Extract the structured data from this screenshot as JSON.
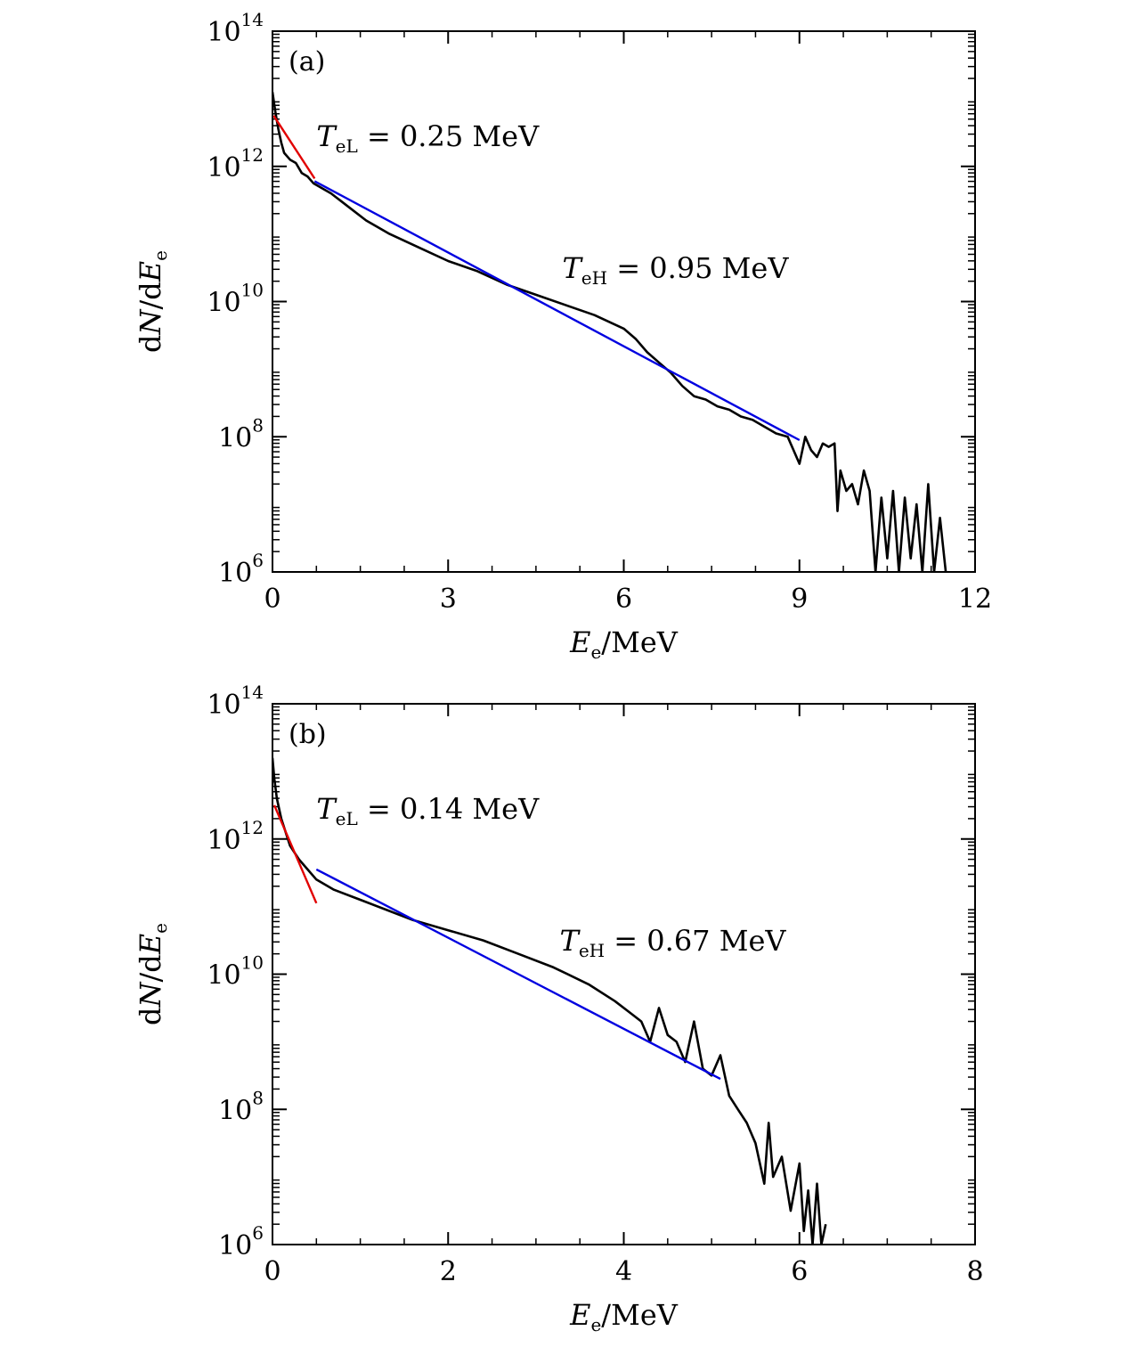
{
  "chart_data": [
    {
      "type": "line",
      "panel_label": "(a)",
      "xlabel": "E",
      "xlabel_sub": "e",
      "xlabel_unit": "/MeV",
      "ylabel": "dN/dE",
      "ylabel_sub": "e",
      "y_scale": "log",
      "xlim": [
        0,
        12
      ],
      "ylim_exp": [
        6,
        14
      ],
      "x_ticks": [
        0,
        3,
        6,
        9,
        12
      ],
      "y_tick_exps": [
        6,
        8,
        10,
        12,
        14
      ],
      "y_tick_base": "10",
      "y_tick_labels": [
        "6",
        "8",
        "10",
        "12",
        "14"
      ],
      "annotations": [
        {
          "symbol": "T",
          "sub": "eL",
          "text": " = 0.25 MeV",
          "at_x": 0.75,
          "at_log": 12.3
        },
        {
          "symbol": "T",
          "sub": "eH",
          "text": " = 0.95 MeV",
          "at_x": 4.95,
          "at_log": 10.35
        }
      ],
      "series": [
        {
          "name": "spectrum",
          "color": "#000000",
          "x": [
            0,
            0.05,
            0.1,
            0.15,
            0.2,
            0.3,
            0.4,
            0.5,
            0.6,
            0.7,
            1.0,
            1.3,
            1.6,
            2.0,
            2.5,
            3.0,
            3.5,
            4.0,
            4.5,
            5.0,
            5.5,
            6.0,
            6.2,
            6.4,
            6.6,
            6.8,
            7.0,
            7.2,
            7.4,
            7.6,
            7.8,
            8.0,
            8.2,
            8.4,
            8.6,
            8.8,
            9.0,
            9.1,
            9.2,
            9.3,
            9.4,
            9.5,
            9.6,
            9.65,
            9.7,
            9.8,
            9.9,
            10.0,
            10.1,
            10.2,
            10.3,
            10.4,
            10.5,
            10.6,
            10.7,
            10.8,
            10.9,
            11.0,
            11.1,
            11.2,
            11.3,
            11.4,
            11.5
          ],
          "log_y": [
            13.1,
            12.8,
            12.55,
            12.35,
            12.2,
            12.1,
            12.05,
            11.9,
            11.85,
            11.75,
            11.6,
            11.4,
            11.2,
            11.0,
            10.8,
            10.6,
            10.45,
            10.25,
            10.1,
            9.95,
            9.8,
            9.6,
            9.45,
            9.25,
            9.1,
            8.95,
            8.75,
            8.6,
            8.55,
            8.45,
            8.4,
            8.3,
            8.25,
            8.15,
            8.05,
            8.0,
            7.6,
            8.0,
            7.8,
            7.7,
            7.9,
            7.85,
            7.9,
            6.9,
            7.5,
            7.2,
            7.3,
            7.0,
            7.5,
            7.2,
            6.0,
            7.1,
            6.2,
            7.2,
            6.0,
            7.1,
            6.2,
            7.0,
            6.0,
            7.3,
            6.0,
            6.8,
            6.0
          ]
        },
        {
          "name": "fit T_eL",
          "color": "#e10000",
          "x": [
            0.02,
            0.72
          ],
          "log_y": [
            12.75,
            11.82
          ]
        },
        {
          "name": "fit T_eH",
          "color": "#0000e0",
          "x": [
            0.72,
            9.0
          ],
          "log_y": [
            11.78,
            7.95
          ]
        }
      ]
    },
    {
      "type": "line",
      "panel_label": "(b)",
      "xlabel": "E",
      "xlabel_sub": "e",
      "xlabel_unit": "/MeV",
      "ylabel": "dN/dE",
      "ylabel_sub": "e",
      "y_scale": "log",
      "xlim": [
        0,
        8
      ],
      "ylim_exp": [
        6,
        14
      ],
      "x_ticks": [
        0,
        2,
        4,
        6,
        8
      ],
      "y_tick_exps": [
        6,
        8,
        10,
        12,
        14
      ],
      "y_tick_base": "10",
      "y_tick_labels": [
        "6",
        "8",
        "10",
        "12",
        "14"
      ],
      "annotations": [
        {
          "symbol": "T",
          "sub": "eL",
          "text": " = 0.14 MeV",
          "at_x": 0.5,
          "at_log": 12.3
        },
        {
          "symbol": "T",
          "sub": "eH",
          "text": " = 0.67 MeV",
          "at_x": 3.27,
          "at_log": 10.35
        }
      ],
      "series": [
        {
          "name": "spectrum",
          "color": "#000000",
          "x": [
            0,
            0.02,
            0.05,
            0.1,
            0.15,
            0.2,
            0.3,
            0.4,
            0.5,
            0.7,
            1.0,
            1.3,
            1.6,
            2.0,
            2.4,
            2.8,
            3.2,
            3.6,
            3.9,
            4.1,
            4.2,
            4.3,
            4.4,
            4.5,
            4.6,
            4.7,
            4.8,
            4.9,
            5.0,
            5.1,
            5.2,
            5.3,
            5.4,
            5.5,
            5.6,
            5.65,
            5.7,
            5.8,
            5.9,
            6.0,
            6.05,
            6.1,
            6.15,
            6.2,
            6.25,
            6.3
          ],
          "log_y": [
            13.2,
            12.9,
            12.6,
            12.3,
            12.1,
            11.9,
            11.7,
            11.55,
            11.4,
            11.25,
            11.1,
            10.95,
            10.8,
            10.65,
            10.5,
            10.3,
            10.1,
            9.85,
            9.6,
            9.4,
            9.3,
            9.0,
            9.5,
            9.1,
            9.0,
            8.7,
            9.3,
            8.6,
            8.5,
            8.8,
            8.2,
            8.0,
            7.8,
            7.5,
            6.9,
            7.8,
            7.0,
            7.3,
            6.5,
            7.2,
            6.2,
            6.8,
            6.0,
            6.9,
            6.0,
            6.3
          ]
        },
        {
          "name": "fit T_eL",
          "color": "#e10000",
          "x": [
            0.02,
            0.5
          ],
          "log_y": [
            12.5,
            11.05
          ]
        },
        {
          "name": "fit T_eH",
          "color": "#0000e0",
          "x": [
            0.5,
            5.1
          ],
          "log_y": [
            11.55,
            8.45
          ]
        }
      ]
    }
  ]
}
